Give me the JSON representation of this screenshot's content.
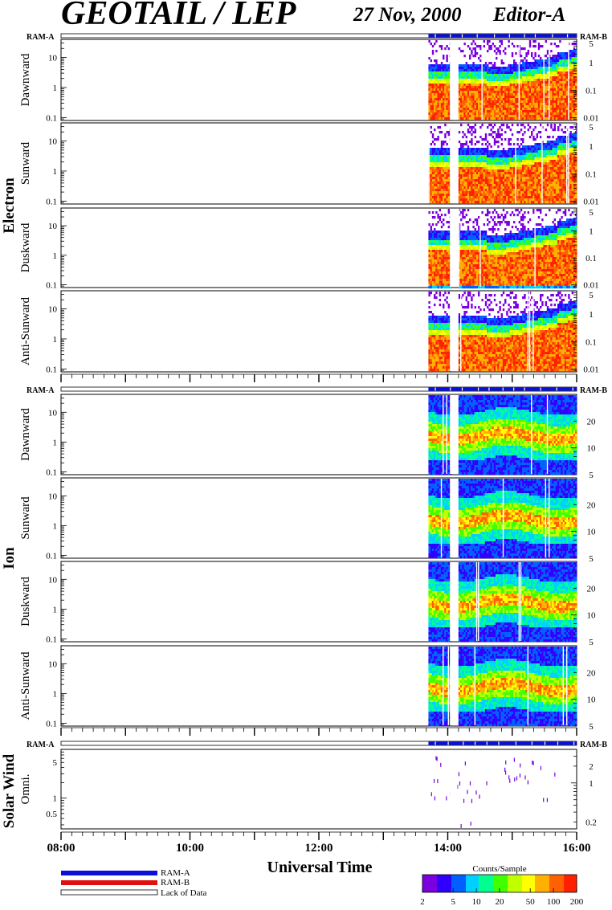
{
  "header": {
    "title": "GEOTAIL / LEP",
    "date": "27 Nov, 2000",
    "editor": "Editor-A"
  },
  "labels": {
    "ram_a": "RAM-A",
    "ram_b": "RAM-B"
  },
  "groups": {
    "electron": "Electron",
    "ion": "Ion",
    "solar_wind": "Solar Wind"
  },
  "colors": {
    "ram_a": "#0a10d8",
    "ram_b": "#e01010",
    "spectrum": [
      "#7a00e0",
      "#3000ff",
      "#0060ff",
      "#00d0ff",
      "#00ff90",
      "#40ff00",
      "#c0ff00",
      "#ffff00",
      "#ffb000",
      "#ff6000",
      "#ff2000"
    ]
  },
  "chart_data": {
    "type": "heatmap",
    "xlabel": "Universal Time",
    "x_ticks": [
      "08:00",
      "10:00",
      "12:00",
      "14:00",
      "16:00"
    ],
    "x_range": [
      "08:00",
      "16:00"
    ],
    "data_start": "13:42",
    "data_gap": [
      "14:02",
      "14:09"
    ],
    "panels": [
      {
        "group": "Electron",
        "name": "Dawnward",
        "left_ticks": [
          "10",
          "1",
          "0.1"
        ],
        "left_vals": [
          10,
          1,
          0.1
        ],
        "left_lim": [
          0.08,
          40
        ],
        "right_ticks": [
          "5",
          "1",
          "0.1",
          "0.01"
        ],
        "right_vals": [
          5,
          1,
          0.1,
          0.01
        ],
        "right_lim": [
          0.008,
          7
        ]
      },
      {
        "group": "Electron",
        "name": "Sunward",
        "left_ticks": [
          "10",
          "1",
          "0.1"
        ],
        "left_vals": [
          10,
          1,
          0.1
        ],
        "left_lim": [
          0.08,
          40
        ],
        "right_ticks": [
          "5",
          "1",
          "0.1",
          "0.01"
        ],
        "right_vals": [
          5,
          1,
          0.1,
          0.01
        ],
        "right_lim": [
          0.008,
          7
        ]
      },
      {
        "group": "Electron",
        "name": "Duskward",
        "left_ticks": [
          "10",
          "1",
          "0.1"
        ],
        "left_vals": [
          10,
          1,
          0.1
        ],
        "left_lim": [
          0.08,
          40
        ],
        "right_ticks": [
          "5",
          "1",
          "0.1",
          "0.01"
        ],
        "right_vals": [
          5,
          1,
          0.1,
          0.01
        ],
        "right_lim": [
          0.008,
          7
        ]
      },
      {
        "group": "Electron",
        "name": "Anti-Sunward",
        "left_ticks": [
          "10",
          "1",
          "0.1"
        ],
        "left_vals": [
          10,
          1,
          0.1
        ],
        "left_lim": [
          0.08,
          40
        ],
        "right_ticks": [
          "5",
          "1",
          "0.1",
          "0.01"
        ],
        "right_vals": [
          5,
          1,
          0.1,
          0.01
        ],
        "right_lim": [
          0.008,
          7
        ]
      },
      {
        "group": "Ion",
        "name": "Dawnward",
        "left_ticks": [
          "10",
          "1",
          "0.1"
        ],
        "left_vals": [
          10,
          1,
          0.1
        ],
        "left_lim": [
          0.08,
          40
        ],
        "right_ticks": [
          "20",
          "10",
          "5"
        ],
        "right_vals": [
          20,
          10,
          5
        ],
        "right_lim": [
          5,
          40
        ]
      },
      {
        "group": "Ion",
        "name": "Sunward",
        "left_ticks": [
          "10",
          "1",
          "0.1"
        ],
        "left_vals": [
          10,
          1,
          0.1
        ],
        "left_lim": [
          0.08,
          40
        ],
        "right_ticks": [
          "20",
          "10",
          "5"
        ],
        "right_vals": [
          20,
          10,
          5
        ],
        "right_lim": [
          5,
          40
        ]
      },
      {
        "group": "Ion",
        "name": "Duskward",
        "left_ticks": [
          "10",
          "1",
          "0.1"
        ],
        "left_vals": [
          10,
          1,
          0.1
        ],
        "left_lim": [
          0.08,
          40
        ],
        "right_ticks": [
          "20",
          "10",
          "5"
        ],
        "right_vals": [
          20,
          10,
          5
        ],
        "right_lim": [
          5,
          40
        ]
      },
      {
        "group": "Ion",
        "name": "Anti-Sunward",
        "left_ticks": [
          "10",
          "1",
          "0.1"
        ],
        "left_vals": [
          10,
          1,
          0.1
        ],
        "left_lim": [
          0.08,
          40
        ],
        "right_ticks": [
          "20",
          "10",
          "5"
        ],
        "right_vals": [
          20,
          10,
          5
        ],
        "right_lim": [
          5,
          40
        ]
      },
      {
        "group": "Solar Wind",
        "name": "Omni.",
        "left_ticks": [
          "5",
          "1",
          "0.5"
        ],
        "left_vals": [
          5,
          1,
          0.5
        ],
        "left_lim": [
          0.25,
          9
        ],
        "right_ticks": [
          "2",
          "1",
          "0.2"
        ],
        "right_vals": [
          2,
          1,
          0.2
        ],
        "right_lim": [
          0.15,
          4
        ]
      }
    ],
    "legend": {
      "ram_a": "RAM-A",
      "ram_b": "RAM-B",
      "lack": "Lack of Data"
    },
    "colorbar": {
      "title": "Counts/Sample",
      "ticks": [
        "2",
        "5",
        "10",
        "20",
        "50",
        "100",
        "200"
      ],
      "tick_vals": [
        2,
        5,
        10,
        20,
        50,
        100,
        200
      ],
      "range": [
        2,
        200
      ]
    }
  }
}
